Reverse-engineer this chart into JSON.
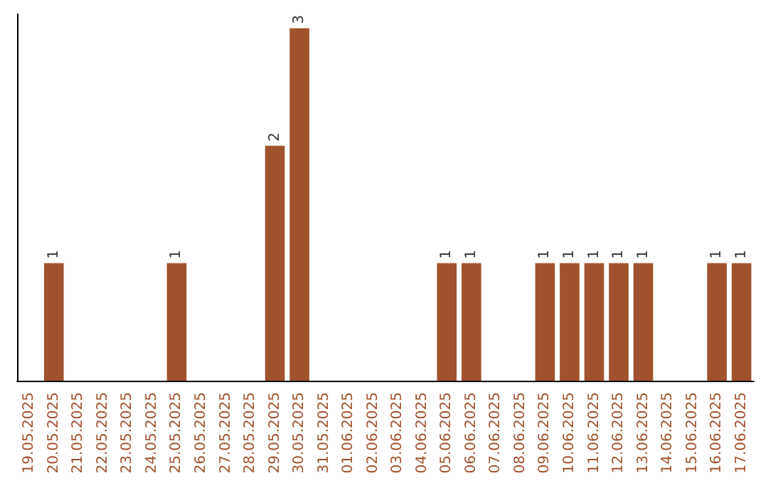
{
  "chart_data": {
    "type": "bar",
    "categories": [
      "19.05.2025",
      "20.05.2025",
      "21.05.2025",
      "22.05.2025",
      "23.05.2025",
      "24.05.2025",
      "25.05.2025",
      "26.05.2025",
      "27.05.2025",
      "28.05.2025",
      "29.05.2025",
      "30.05.2025",
      "31.05.2025",
      "01.06.2025",
      "02.06.2025",
      "03.06.2025",
      "04.06.2025",
      "05.06.2025",
      "06.06.2025",
      "07.06.2025",
      "08.06.2025",
      "09.06.2025",
      "10.06.2025",
      "11.06.2025",
      "12.06.2025",
      "13.06.2025",
      "14.06.2025",
      "15.06.2025",
      "16.06.2025",
      "17.06.2025"
    ],
    "values": [
      null,
      1,
      null,
      null,
      null,
      null,
      1,
      null,
      null,
      null,
      2,
      3,
      null,
      null,
      null,
      null,
      null,
      1,
      1,
      null,
      null,
      1,
      1,
      1,
      1,
      1,
      null,
      null,
      1,
      1
    ],
    "color": "#a0522d",
    "data_labels": true,
    "tick_labels": "x"
  }
}
